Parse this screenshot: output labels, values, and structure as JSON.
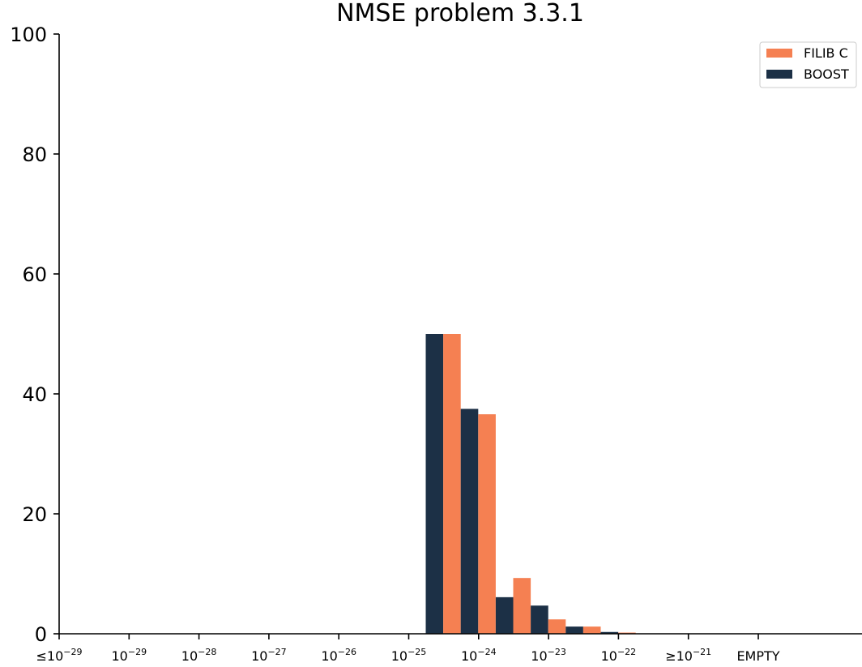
{
  "chart_data": {
    "type": "bar",
    "title": "NMSE problem 3.3.1",
    "xlabel": "",
    "ylabel": "",
    "ylim": [
      0,
      100
    ],
    "yticks": [
      0,
      20,
      40,
      60,
      80,
      100
    ],
    "grid": false,
    "legend_position": "top-right",
    "tick_labels": [
      {
        "prefix": "≤10",
        "exp": "−29"
      },
      {
        "prefix": "10",
        "exp": "−29"
      },
      {
        "prefix": "10",
        "exp": "−28"
      },
      {
        "prefix": "10",
        "exp": "−27"
      },
      {
        "prefix": "10",
        "exp": "−26"
      },
      {
        "prefix": "10",
        "exp": "−25"
      },
      {
        "prefix": "10",
        "exp": "−24"
      },
      {
        "prefix": "10",
        "exp": "−23"
      },
      {
        "prefix": "10",
        "exp": "−22"
      },
      {
        "prefix": "≥10",
        "exp": "−21"
      },
      {
        "prefix": "EMPTY",
        "exp": ""
      }
    ],
    "bins": [
      "10^-25 to 10^-24 (a)",
      "10^-25 to 10^-24 (b)",
      "10^-24 to 10^-23 (a)",
      "10^-24 to 10^-23 (b)",
      "10^-23 to 10^-22 (a)",
      "10^-23 to 10^-22 (b)"
    ],
    "series": [
      {
        "name": "FILIB C",
        "color": "#f58052",
        "values": [
          50,
          36.6,
          9.3,
          2.4,
          1.2,
          0.2
        ]
      },
      {
        "name": "BOOST",
        "color": "#1c3046",
        "values": [
          50,
          37.5,
          6.1,
          4.7,
          1.2,
          0.3
        ]
      }
    ]
  }
}
